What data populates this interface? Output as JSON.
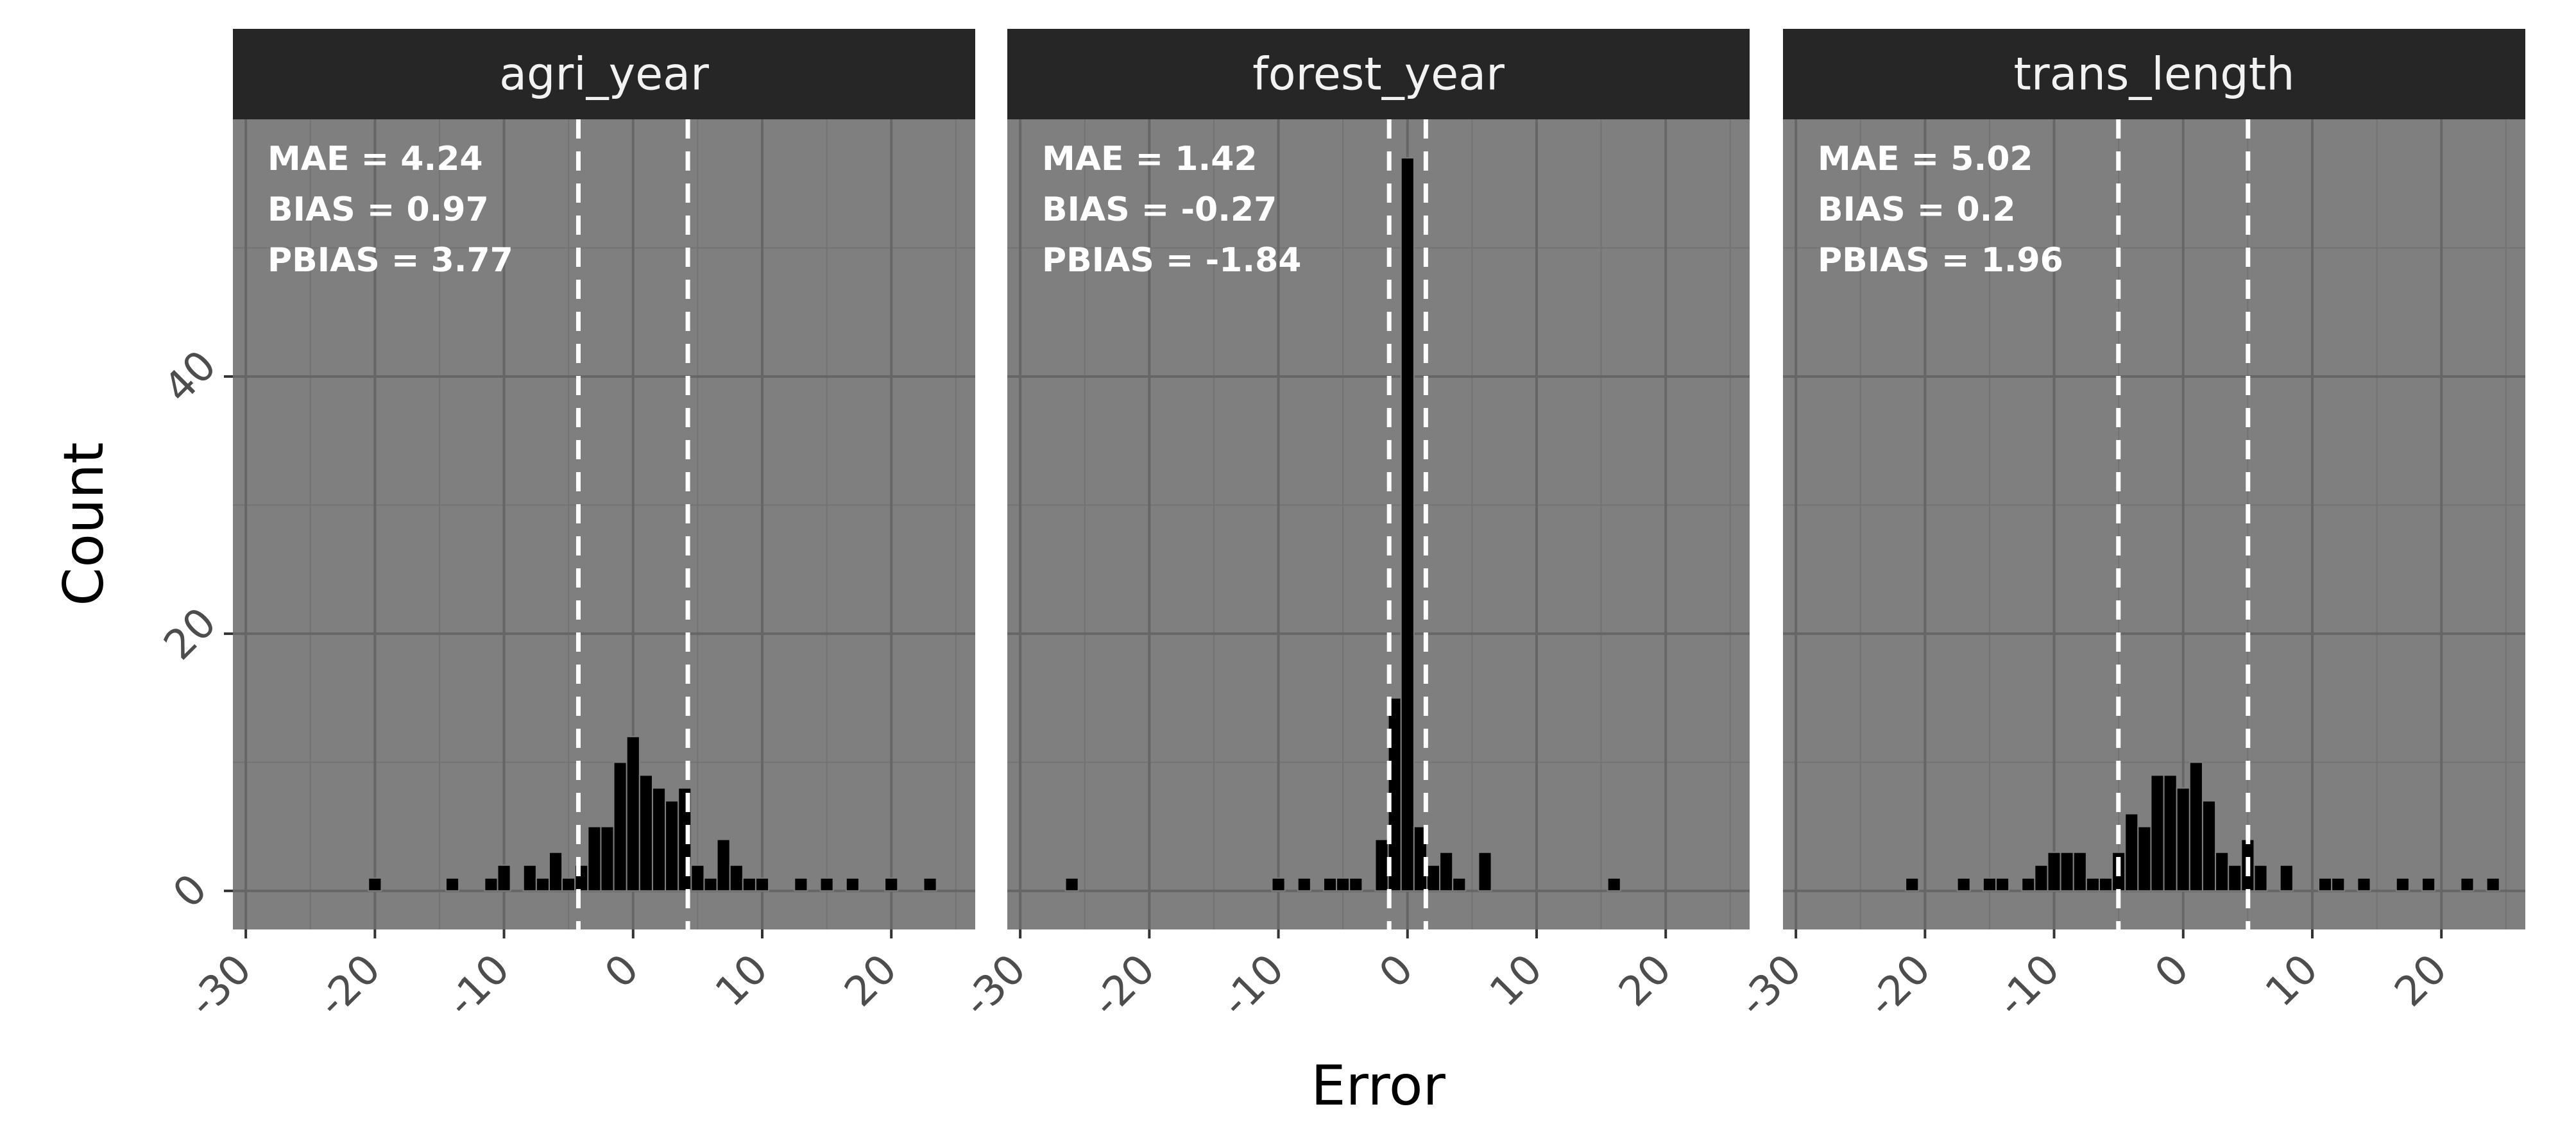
{
  "colors": {
    "panel_background": "#7f7f7f",
    "grid_major": "#666666",
    "grid_minor": "#737373",
    "strip_background": "#262626",
    "strip_text": "#f2f2f2",
    "bar_fill": "#000000",
    "bar_outline": "#7f7f7f",
    "reference_line": "#ffffff",
    "tick_text": "#4d4d4d"
  },
  "chart_data": {
    "type": "bar",
    "xlabel": "Error",
    "ylabel": "Count",
    "xlim": [
      -31,
      26.5
    ],
    "ylim": [
      -3,
      60
    ],
    "x_ticks": [
      -30,
      -20,
      -10,
      0,
      10,
      20
    ],
    "x_tick_labels": [
      "-30",
      "-20",
      "-10",
      "0",
      "10",
      "20"
    ],
    "y_ticks": [
      0,
      20,
      40
    ],
    "y_tick_labels": [
      "0",
      "20",
      "40"
    ],
    "grid": true,
    "bin_width": 1,
    "panels": [
      {
        "title": "agri_year",
        "stats": [
          "MAE = 4.24",
          "BIAS = 0.97",
          "PBIAS = 3.77"
        ],
        "mae": 4.24,
        "reference_lines": [
          -4.24,
          4.24
        ],
        "bins": [
          [
            -20,
            1
          ],
          [
            -14,
            1
          ],
          [
            -11,
            1
          ],
          [
            -10,
            2
          ],
          [
            -8,
            2
          ],
          [
            -7,
            1
          ],
          [
            -6,
            3
          ],
          [
            -5,
            1
          ],
          [
            -4,
            2
          ],
          [
            -3,
            5
          ],
          [
            -2,
            5
          ],
          [
            -1,
            10
          ],
          [
            0,
            12
          ],
          [
            1,
            9
          ],
          [
            2,
            8
          ],
          [
            3,
            7
          ],
          [
            4,
            8
          ],
          [
            5,
            2
          ],
          [
            6,
            1
          ],
          [
            7,
            4
          ],
          [
            8,
            2
          ],
          [
            9,
            1
          ],
          [
            10,
            1
          ],
          [
            13,
            1
          ],
          [
            15,
            1
          ],
          [
            17,
            1
          ],
          [
            20,
            1
          ],
          [
            23,
            1
          ]
        ]
      },
      {
        "title": "forest_year",
        "stats": [
          "MAE = 1.42",
          "BIAS = -0.27",
          "PBIAS = -1.84"
        ],
        "mae": 1.42,
        "reference_lines": [
          -1.42,
          1.42
        ],
        "bins": [
          [
            -26,
            1
          ],
          [
            -10,
            1
          ],
          [
            -8,
            1
          ],
          [
            -6,
            1
          ],
          [
            -5,
            1
          ],
          [
            -4,
            1
          ],
          [
            -2,
            4
          ],
          [
            -1,
            15
          ],
          [
            0,
            57
          ],
          [
            1,
            5
          ],
          [
            2,
            2
          ],
          [
            3,
            3
          ],
          [
            4,
            1
          ],
          [
            6,
            3
          ],
          [
            16,
            1
          ]
        ]
      },
      {
        "title": "trans_length",
        "stats": [
          "MAE = 5.02",
          "BIAS = 0.2",
          "PBIAS = 1.96"
        ],
        "mae": 5.02,
        "reference_lines": [
          -5.02,
          5.02
        ],
        "bins": [
          [
            -21,
            1
          ],
          [
            -17,
            1
          ],
          [
            -15,
            1
          ],
          [
            -14,
            1
          ],
          [
            -12,
            1
          ],
          [
            -11,
            2
          ],
          [
            -10,
            3
          ],
          [
            -9,
            3
          ],
          [
            -8,
            3
          ],
          [
            -7,
            1
          ],
          [
            -6,
            1
          ],
          [
            -5,
            3
          ],
          [
            -4,
            6
          ],
          [
            -3,
            5
          ],
          [
            -2,
            9
          ],
          [
            -1,
            9
          ],
          [
            0,
            8
          ],
          [
            1,
            10
          ],
          [
            2,
            7
          ],
          [
            3,
            3
          ],
          [
            4,
            2
          ],
          [
            5,
            4
          ],
          [
            6,
            2
          ],
          [
            8,
            2
          ],
          [
            11,
            1
          ],
          [
            12,
            1
          ],
          [
            14,
            1
          ],
          [
            17,
            1
          ],
          [
            19,
            1
          ],
          [
            22,
            1
          ],
          [
            24,
            1
          ]
        ]
      }
    ]
  }
}
